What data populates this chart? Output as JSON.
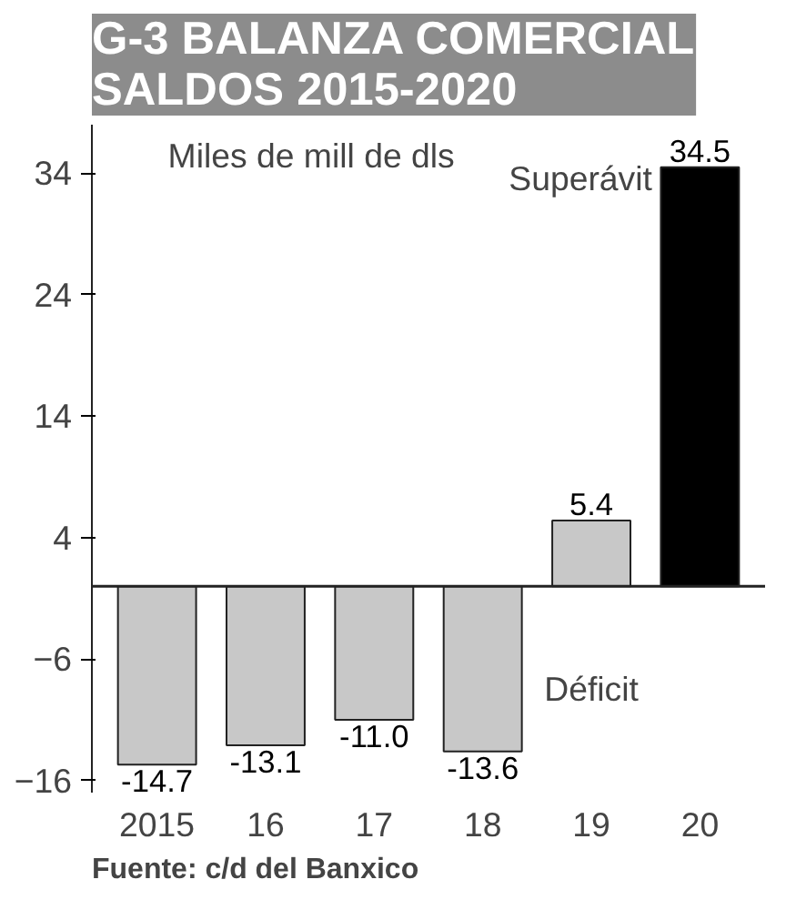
{
  "chart_data": {
    "type": "bar",
    "title": "G-3 BALANZA COMERCIAL\nSALDOS 2015-2020",
    "subtitle": "Miles de mill de dls",
    "categories": [
      "2015",
      "16",
      "17",
      "18",
      "19",
      "20"
    ],
    "values": [
      -14.7,
      -13.1,
      -11.0,
      -13.6,
      5.4,
      34.5
    ],
    "colors": [
      "#c8c8c8",
      "#c8c8c8",
      "#c8c8c8",
      "#c8c8c8",
      "#c8c8c8",
      "#000000"
    ],
    "value_labels": [
      "-14.7",
      "-13.1",
      "-11.0",
      "-13.6",
      "5.4",
      "34.5"
    ],
    "ylim": [
      -17,
      38
    ],
    "yticks": [
      -16,
      -6,
      4,
      14,
      24,
      34
    ],
    "grid": false,
    "annotations": [
      "Superávit",
      "Déficit",
      "Fuente: c/d del Banxico"
    ]
  }
}
